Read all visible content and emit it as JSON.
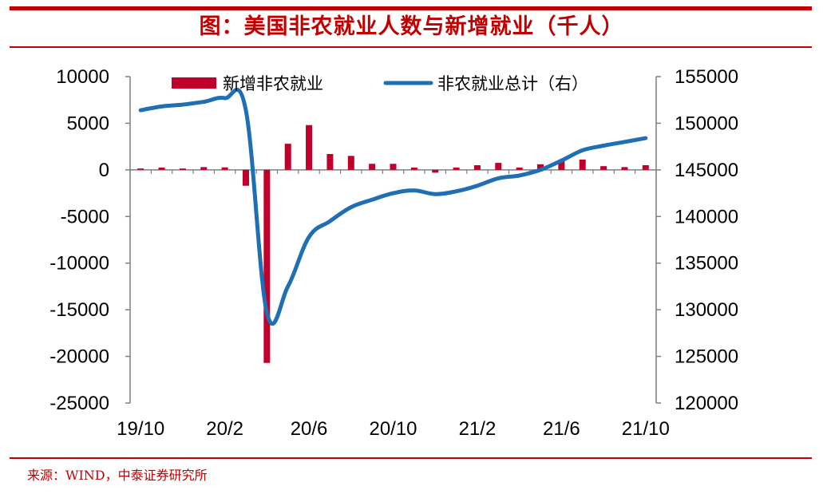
{
  "title": "图：美国非农就业人数与新增就业（千人）",
  "source": "来源：WIND，中泰证券研究所",
  "colors": {
    "accent": "#c00000",
    "bar": "#c0002a",
    "line": "#1f6fb4",
    "axis": "#7f7f7f"
  },
  "chart_data": {
    "type": "bar+line",
    "legend": [
      "新增非农就业",
      "非农就业总计（右）"
    ],
    "x_tick_labels": [
      "19/10",
      "20/2",
      "20/6",
      "20/10",
      "21/2",
      "21/6",
      "21/10"
    ],
    "y_left": {
      "ticks": [
        10000,
        5000,
        0,
        -5000,
        -10000,
        -15000,
        -20000,
        -25000
      ],
      "ylim": [
        -25000,
        10000
      ]
    },
    "y_right": {
      "ticks": [
        155000,
        150000,
        145000,
        140000,
        135000,
        130000,
        125000,
        120000
      ],
      "ylim": [
        120000,
        155000
      ]
    },
    "months": [
      "2019-10",
      "2019-11",
      "2019-12",
      "2020-01",
      "2020-02",
      "2020-03",
      "2020-04",
      "2020-05",
      "2020-06",
      "2020-07",
      "2020-08",
      "2020-09",
      "2020-10",
      "2020-11",
      "2020-12",
      "2021-01",
      "2021-02",
      "2021-03",
      "2021-04",
      "2021-05",
      "2021-06",
      "2021-07",
      "2021-08",
      "2021-09",
      "2021-10"
    ],
    "series": [
      {
        "name": "新增非农就业",
        "axis": "left",
        "kind": "bar",
        "values": [
          150,
          250,
          150,
          300,
          270,
          -1700,
          -20700,
          2800,
          4800,
          1700,
          1500,
          650,
          650,
          250,
          -300,
          250,
          500,
          750,
          250,
          600,
          1000,
          1100,
          400,
          300,
          500
        ]
      },
      {
        "name": "非农就业总计（右）",
        "axis": "right",
        "kind": "line",
        "values": [
          151400,
          151800,
          152000,
          152300,
          152700,
          151400,
          129700,
          132500,
          137800,
          139500,
          141000,
          141800,
          142500,
          142800,
          142400,
          142700,
          143300,
          144100,
          144400,
          145000,
          146000,
          147100,
          147600,
          148000,
          148400
        ]
      }
    ]
  }
}
